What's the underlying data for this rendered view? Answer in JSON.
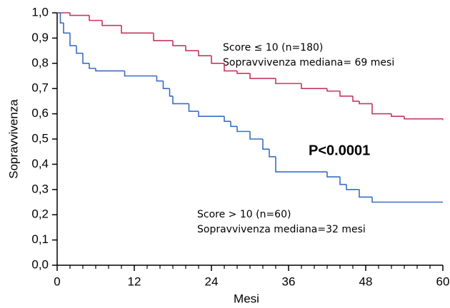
{
  "chart_data": {
    "type": "step",
    "xlabel": "Mesi",
    "ylabel": "Sopravvivenza",
    "xlim": [
      0,
      60
    ],
    "xticks": [
      0,
      12,
      24,
      36,
      48,
      60
    ],
    "xminorticks": [
      2,
      4,
      6,
      8,
      10,
      14,
      16,
      18,
      20,
      22,
      26,
      28,
      30,
      32,
      34,
      38,
      40,
      42,
      44,
      46,
      50,
      52,
      54,
      56,
      58
    ],
    "ylim": [
      0,
      1
    ],
    "yticks": [
      {
        "value": 0,
        "label": "0,0"
      },
      {
        "value": 0.1,
        "label": "0,1"
      },
      {
        "value": 0.2,
        "label": "0,2"
      },
      {
        "value": 0.3,
        "label": "0,3"
      },
      {
        "value": 0.4,
        "label": "0,4"
      },
      {
        "value": 0.5,
        "label": "0,5"
      },
      {
        "value": 0.6,
        "label": "0,6"
      },
      {
        "value": 0.7,
        "label": "0,7"
      },
      {
        "value": 0.8,
        "label": "0,8"
      },
      {
        "value": 0.9,
        "label": "0,9"
      },
      {
        "value": 1,
        "label": "1,0"
      }
    ],
    "series": [
      {
        "name": "Score ≤ 10 (n=180)",
        "color": "#c2395c",
        "x": [
          0,
          2,
          5,
          7,
          10,
          15,
          18,
          20,
          22,
          24,
          26,
          28,
          30,
          34,
          38,
          42,
          44,
          46,
          47,
          49,
          52,
          54,
          60
        ],
        "values": [
          1.0,
          0.99,
          0.97,
          0.95,
          0.92,
          0.89,
          0.87,
          0.85,
          0.83,
          0.8,
          0.77,
          0.76,
          0.74,
          0.72,
          0.7,
          0.69,
          0.67,
          0.65,
          0.64,
          0.6,
          0.59,
          0.58,
          0.575
        ]
      },
      {
        "name": "Score > 10 (n=60)",
        "color": "#3a6dc4",
        "x": [
          0,
          0.5,
          1,
          2,
          3,
          4,
          5,
          6,
          10.5,
          15.5,
          16.5,
          17.5,
          18,
          20.5,
          22,
          26,
          27,
          28,
          30,
          32,
          33,
          34,
          42,
          44,
          45,
          47,
          49,
          60
        ],
        "values": [
          1.0,
          0.96,
          0.92,
          0.87,
          0.84,
          0.8,
          0.78,
          0.77,
          0.75,
          0.73,
          0.7,
          0.67,
          0.64,
          0.61,
          0.59,
          0.57,
          0.55,
          0.53,
          0.5,
          0.46,
          0.43,
          0.37,
          0.35,
          0.32,
          0.3,
          0.27,
          0.25,
          0.25
        ]
      }
    ],
    "annotations": [
      {
        "text": "Sopravvivenza mediana= 69 mesi"
      },
      {
        "text": "Sopravvivenza mediana=32 mesi"
      },
      {
        "text": "P<0.0001"
      }
    ]
  }
}
